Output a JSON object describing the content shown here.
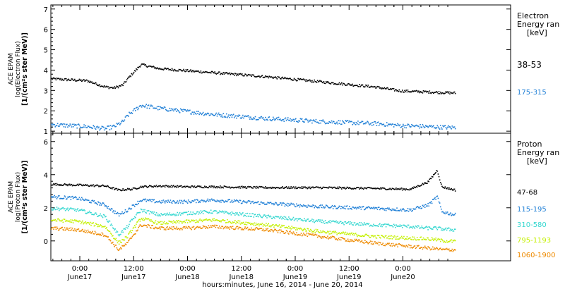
{
  "chart_data": [
    {
      "type": "scatter",
      "ylabel_lines": [
        "ACE EPAM",
        "log(Electron Flux)",
        "[1/(cm²s ster MeV)]"
      ],
      "ylim": [
        0.9,
        7.2
      ],
      "yticks": [
        1,
        2,
        3,
        4,
        5,
        6,
        7
      ],
      "legend_title_lines": [
        "Electron",
        "Energy ran"
      ],
      "legend_unit": "[keV]",
      "x_hours": [
        0,
        4,
        8,
        12,
        14,
        16,
        17,
        20,
        24,
        30,
        36,
        48,
        60,
        72,
        78,
        84,
        90
      ],
      "series": [
        {
          "name": "38-53",
          "color": "#000000",
          "values": [
            3.6,
            3.55,
            3.5,
            3.2,
            3.15,
            3.3,
            3.6,
            4.3,
            4.1,
            4.0,
            3.9,
            3.7,
            3.45,
            3.2,
            3.0,
            2.95,
            2.9
          ]
        },
        {
          "name": "175-315",
          "color": "#1f7fd6",
          "values": [
            1.35,
            1.3,
            1.25,
            1.15,
            1.25,
            1.5,
            1.8,
            2.3,
            2.15,
            2.0,
            1.85,
            1.65,
            1.5,
            1.4,
            1.3,
            1.25,
            1.2
          ]
        }
      ]
    },
    {
      "type": "scatter",
      "ylabel_lines": [
        "ACE EPAM",
        "log(Proton Flux)",
        "[1/(cm²s ster MeV)]"
      ],
      "ylim": [
        -1.2,
        6.5
      ],
      "yticks": [
        0,
        2,
        4,
        6
      ],
      "legend_title_lines": [
        "Proton",
        "Energy ran"
      ],
      "legend_unit": "[keV]",
      "x_hours": [
        0,
        6,
        12,
        15,
        17,
        18,
        20,
        24,
        30,
        36,
        48,
        60,
        72,
        80,
        84,
        86,
        87,
        90
      ],
      "series": [
        {
          "name": "47-68",
          "color": "#000000",
          "values": [
            3.45,
            3.4,
            3.35,
            3.1,
            3.15,
            3.15,
            3.3,
            3.35,
            3.3,
            3.3,
            3.25,
            3.25,
            3.2,
            3.15,
            3.6,
            4.3,
            3.3,
            3.1
          ]
        },
        {
          "name": "115-195",
          "color": "#1f7fd6",
          "values": [
            2.7,
            2.6,
            2.2,
            1.6,
            1.9,
            2.1,
            2.5,
            2.4,
            2.4,
            2.5,
            2.3,
            2.1,
            2.0,
            1.9,
            2.2,
            2.7,
            1.8,
            1.6
          ]
        },
        {
          "name": "310-580",
          "color": "#35d7d0",
          "values": [
            2.0,
            1.9,
            1.5,
            0.4,
            0.9,
            1.3,
            1.9,
            1.6,
            1.7,
            1.8,
            1.5,
            1.2,
            1.0,
            0.9,
            0.8,
            0.8,
            0.75,
            0.7
          ]
        },
        {
          "name": "795-1193",
          "color": "#c4f000",
          "values": [
            1.3,
            1.2,
            0.9,
            -0.1,
            0.3,
            0.7,
            1.4,
            1.1,
            1.2,
            1.3,
            1.0,
            0.6,
            0.3,
            0.2,
            0.15,
            0.1,
            0.05,
            0.0
          ]
        },
        {
          "name": "1060-1900",
          "color": "#ee8a00",
          "values": [
            0.8,
            0.7,
            0.4,
            -0.5,
            -0.1,
            0.3,
            1.0,
            0.8,
            0.8,
            0.9,
            0.7,
            0.3,
            -0.1,
            -0.3,
            -0.4,
            -0.45,
            -0.5,
            -0.5
          ]
        }
      ]
    }
  ],
  "x_axis": {
    "tick_lines_1": [
      "0:00",
      "12:00",
      "0:00",
      "12:00",
      "0:00",
      "12:00",
      "0:00"
    ],
    "tick_lines_2": [
      "June17",
      "June17",
      "June18",
      "June18",
      "June19",
      "June19",
      "June20"
    ],
    "label": "hours:minutes, June 16, 2014 - June 20, 2014"
  }
}
